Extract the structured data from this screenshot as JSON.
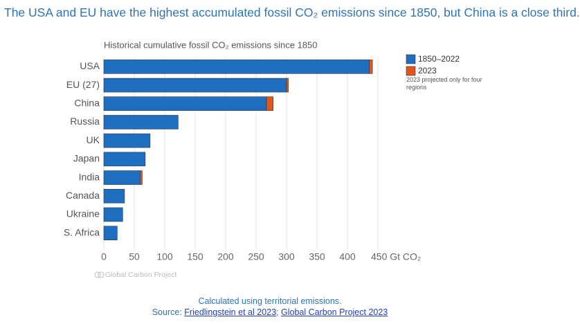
{
  "chart_data": {
    "type": "stacked_barh",
    "title": "The USA and EU have the highest accumulated fossil CO₂ emissions since 1850, but China is a close third.",
    "subtitle": "Historical cumulative fossil CO₂ emissions since 1850",
    "categories": [
      "USA",
      "EU (27)",
      "China",
      "Russia",
      "UK",
      "Japan",
      "India",
      "Canada",
      "Ukraine",
      "S. Africa"
    ],
    "series": [
      {
        "name": "1850–2022",
        "color": "#1f6fc1",
        "values": [
          436,
          300,
          267,
          122,
          76,
          68,
          60,
          34,
          31,
          22
        ]
      },
      {
        "name": "2023",
        "color": "#e0561b",
        "values": [
          5,
          3,
          11,
          null,
          null,
          null,
          3,
          null,
          null,
          null
        ]
      }
    ],
    "xlim": [
      0,
      450
    ],
    "xticks": [
      0,
      50,
      100,
      150,
      200,
      250,
      300,
      350,
      400,
      {
        "value": 450,
        "label": "450 Gt CO₂"
      }
    ],
    "grid": true,
    "legend_note": "2023 projected only for four regions",
    "watermark": "Global Carbon Project"
  },
  "footer": {
    "note": "Calculated using territorial emissions.",
    "source_label": "Source:",
    "links": [
      "Friedlingstein et al 2023",
      "Global Carbon Project 2023"
    ],
    "separator": ";"
  }
}
